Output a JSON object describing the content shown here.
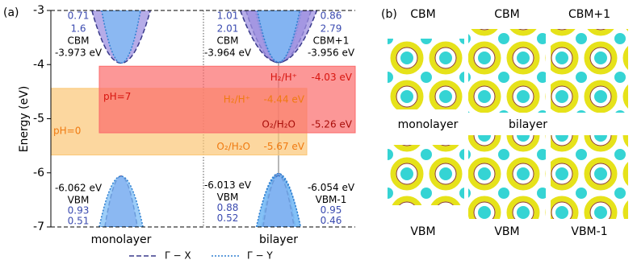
{
  "panel_labels": [
    "(a)",
    "(b)"
  ],
  "chart_data": {
    "type": "band-alignment",
    "ylabel": "Energy (eV)",
    "ylim": [
      -7,
      -3
    ],
    "yticks": [
      -7,
      -6,
      -5,
      -4,
      -3
    ],
    "legend": [
      {
        "name": "Γ − X",
        "color": "#3a3a8c",
        "fill": "#9d90e0",
        "dash": "6,3"
      },
      {
        "name": "Γ − Y",
        "color": "#2f7fd0",
        "fill": "#7cbcf6",
        "dash": "2,2"
      }
    ],
    "columns": [
      {
        "name": "monolayer",
        "bands": [
          {
            "name": "CBM",
            "value": -3.973,
            "value_label": "-3.973 eV",
            "masses": [
              0.71,
              1.6
            ]
          },
          {
            "name": "VBM",
            "value": -6.062,
            "value_label": "-6.062 eV",
            "masses": [
              0.93,
              0.51
            ]
          }
        ]
      },
      {
        "name": "bilayer",
        "bands": [
          {
            "name": "CBM",
            "value": -3.964,
            "value_label": "-3.964 eV",
            "masses": [
              1.01,
              2.01
            ]
          },
          {
            "name": "CBM+1",
            "value": -3.956,
            "value_label": "-3.956 eV",
            "masses": [
              0.86,
              2.79
            ]
          },
          {
            "name": "VBM",
            "value": -6.013,
            "value_label": "-6.013 eV",
            "masses": [
              0.88,
              0.52
            ]
          },
          {
            "name": "VBM-1",
            "value": -6.054,
            "value_label": "-6.054 eV",
            "masses": [
              0.95,
              0.46
            ]
          }
        ]
      }
    ],
    "redox": [
      {
        "name": "pH=0",
        "color": "#fbc676",
        "text_color": "#f07a10",
        "levels": [
          {
            "name": "H₂/H⁺",
            "value": -4.44,
            "value_label": "-4.44 eV"
          },
          {
            "name": "O₂/H₂O",
            "value": -5.67,
            "value_label": "-5.67 eV"
          }
        ]
      },
      {
        "name": "pH=7",
        "color": "#fb6b6b",
        "text_color": "#d8150f",
        "levels": [
          {
            "name": "H₂/H⁺",
            "value": -4.03,
            "value_label": "-4.03 eV"
          },
          {
            "name": "O₂/H₂O",
            "value": -5.26,
            "value_label": "-5.26 eV"
          }
        ]
      }
    ]
  },
  "panel_b": {
    "top_labels": [
      "CBM",
      "CBM",
      "CBM+1"
    ],
    "middle_labels": [
      "monolayer",
      "bilayer"
    ],
    "bottom_labels": [
      "VBM",
      "VBM",
      "VBM-1"
    ]
  }
}
